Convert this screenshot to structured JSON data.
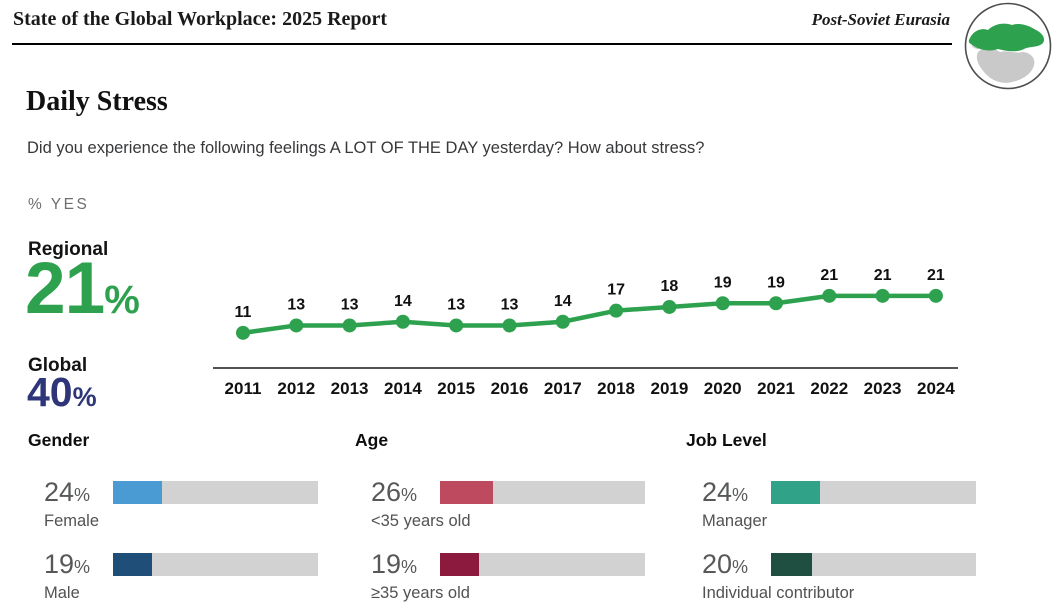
{
  "header": {
    "report_title": "State of the Global Workplace: 2025 Report",
    "region_label": "Post-Soviet Eurasia",
    "globe_icon": "globe-with-eurasia-highlighted"
  },
  "page": {
    "title": "Daily Stress",
    "question": "Did you experience the following feelings A LOT OF THE DAY yesterday? How about stress?",
    "unit_label": "% YES"
  },
  "summary": {
    "regional_label": "Regional",
    "regional_value": "21",
    "regional_unit": "%",
    "regional_color": "#2EA14E",
    "global_label": "Global",
    "global_value": "40",
    "global_unit": "%",
    "global_color": "#2E3679"
  },
  "chart_data": {
    "type": "line",
    "x": [
      2011,
      2012,
      2013,
      2014,
      2015,
      2016,
      2017,
      2018,
      2019,
      2020,
      2021,
      2022,
      2023,
      2024
    ],
    "series": [
      {
        "name": "Regional % yes",
        "values": [
          11,
          13,
          13,
          14,
          13,
          13,
          14,
          17,
          18,
          19,
          19,
          21,
          21,
          21
        ]
      }
    ],
    "line_color": "#2EA14E",
    "point_labels_shown": true,
    "xlabel": "",
    "ylabel": "% YES",
    "legend": "none",
    "grid": false
  },
  "breakdowns": [
    {
      "title": "Gender",
      "rows": [
        {
          "value": 24,
          "value_display": "24",
          "unit": "%",
          "label": "Female",
          "color": "#4A9AD4"
        },
        {
          "value": 19,
          "value_display": "19",
          "unit": "%",
          "label": "Male",
          "color": "#1F4E79"
        }
      ]
    },
    {
      "title": "Age",
      "rows": [
        {
          "value": 26,
          "value_display": "26",
          "unit": "%",
          "label": "<35 years old",
          "color": "#BE4A5F"
        },
        {
          "value": 19,
          "value_display": "19",
          "unit": "%",
          "label": "≥35 years old",
          "color": "#8C1A3E"
        }
      ]
    },
    {
      "title": "Job Level",
      "rows": [
        {
          "value": 24,
          "value_display": "24",
          "unit": "%",
          "label": "Manager",
          "color": "#2FA287"
        },
        {
          "value": 20,
          "value_display": "20",
          "unit": "%",
          "label": "Individual contributor",
          "color": "#1E4F41"
        }
      ]
    }
  ],
  "bar_track_color": "#D2D2D2"
}
